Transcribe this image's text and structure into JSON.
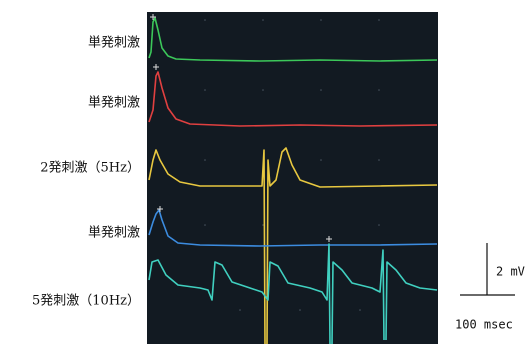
{
  "traces": [
    {
      "label": "単発刺激"
    },
    {
      "label": "単発刺激"
    },
    {
      "label": "2発刺激（5Hz）"
    },
    {
      "label": "単発刺激"
    },
    {
      "label": "5発刺激（10Hz）"
    }
  ],
  "scale_bar": {
    "amplitude": "2 mV",
    "time": "100 msec"
  }
}
